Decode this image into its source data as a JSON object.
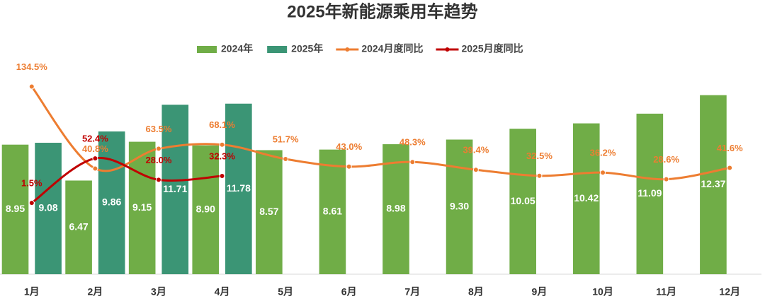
{
  "chart_data": {
    "type": "bar-line",
    "title": "2025年新能源乘用车趋势",
    "categories": [
      "1月",
      "2月",
      "3月",
      "4月",
      "5月",
      "6月",
      "7月",
      "8月",
      "9月",
      "10月",
      "11月",
      "12月"
    ],
    "ylim": [
      0,
      14.5
    ],
    "y2lim": [
      -80,
      160
    ],
    "series": [
      {
        "name": "2024年",
        "kind": "bar",
        "color": "#70ad47",
        "values": [
          8.95,
          6.47,
          9.15,
          8.9,
          8.57,
          8.61,
          8.98,
          9.3,
          10.05,
          10.42,
          11.09,
          12.37
        ],
        "value_labels": [
          "8.95",
          "6.47",
          "9.15",
          "8.90",
          "8.57",
          "8.61",
          "8.98",
          "9.30",
          "10.05",
          "10.42",
          "11.09",
          "12.37"
        ]
      },
      {
        "name": "2025年",
        "kind": "bar",
        "color": "#3b9575",
        "values": [
          9.08,
          9.86,
          11.71,
          11.78,
          null,
          null,
          null,
          null,
          null,
          null,
          null,
          null
        ],
        "value_labels": [
          "9.08",
          "9.86",
          "11.71",
          "11.78",
          null,
          null,
          null,
          null,
          null,
          null,
          null,
          null
        ]
      },
      {
        "name": "2024月度同比",
        "kind": "line",
        "axis": "y2",
        "color": "#ed7d31",
        "values": [
          134.5,
          40.8,
          63.5,
          68.1,
          51.7,
          43.0,
          48.3,
          39.4,
          32.5,
          36.2,
          28.6,
          41.6
        ],
        "value_labels": [
          "134.5%",
          "40.8%",
          "63.5%",
          "68.1%",
          "51.7%",
          "43.0%",
          "48.3%",
          "39.4%",
          "32.5%",
          "36.2%",
          "28.6%",
          "41.6%"
        ]
      },
      {
        "name": "2025月度同比",
        "kind": "line",
        "axis": "y2",
        "color": "#c00000",
        "values": [
          1.5,
          52.4,
          28.0,
          32.3,
          null,
          null,
          null,
          null,
          null,
          null,
          null,
          null
        ],
        "value_labels": [
          "1.5%",
          "52.4%",
          "28.0%",
          "32.3%",
          null,
          null,
          null,
          null,
          null,
          null,
          null,
          null
        ]
      }
    ]
  }
}
